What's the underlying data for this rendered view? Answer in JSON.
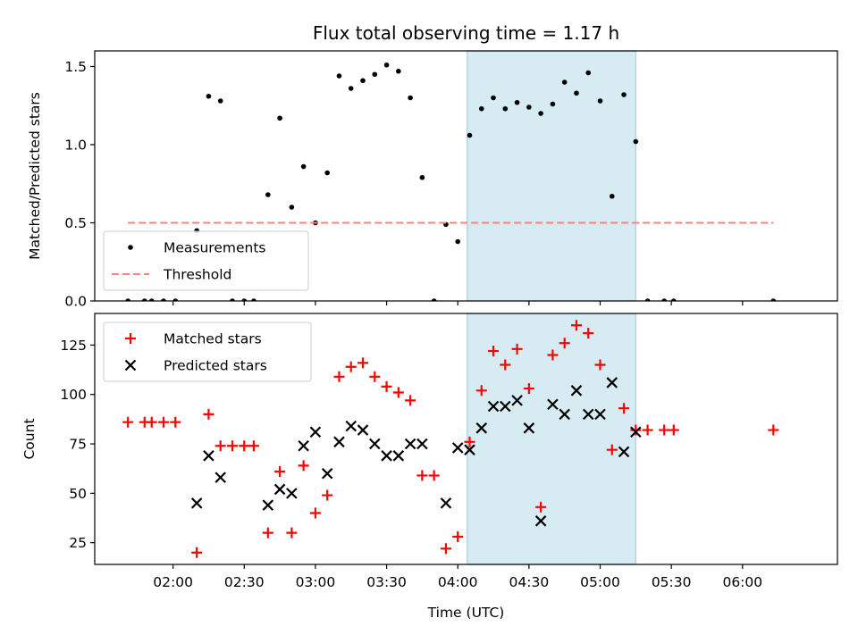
{
  "chart_data": [
    {
      "type": "scatter",
      "title": "Flux total observing time = 1.17 h",
      "xlabel": "",
      "ylabel": "Matched/Predicted stars",
      "xlim": [
        "01:27",
        "06:40"
      ],
      "ylim": [
        0,
        1.6
      ],
      "yticks": [
        "0.0",
        "0.5",
        "1.0",
        "1.5"
      ],
      "legend_position": "lower-left",
      "shaded_region": {
        "x0": "04:04",
        "x1": "05:15",
        "color": "#add8e6"
      },
      "series": [
        {
          "name": "Measurements",
          "color": "#000000",
          "marker": "dot",
          "points": [
            [
              "01:41",
              0.0
            ],
            [
              "01:48",
              0.0
            ],
            [
              "01:51",
              0.0
            ],
            [
              "01:56",
              0.0
            ],
            [
              "02:01",
              0.0
            ],
            [
              "02:10",
              0.45
            ],
            [
              "02:15",
              1.31
            ],
            [
              "02:20",
              1.28
            ],
            [
              "02:25",
              0.0
            ],
            [
              "02:30",
              0.0
            ],
            [
              "02:34",
              0.0
            ],
            [
              "02:40",
              0.68
            ],
            [
              "02:45",
              1.17
            ],
            [
              "02:50",
              0.6
            ],
            [
              "02:55",
              0.86
            ],
            [
              "03:00",
              0.5
            ],
            [
              "03:05",
              0.82
            ],
            [
              "03:10",
              1.44
            ],
            [
              "03:15",
              1.36
            ],
            [
              "03:20",
              1.41
            ],
            [
              "03:25",
              1.45
            ],
            [
              "03:30",
              1.51
            ],
            [
              "03:35",
              1.47
            ],
            [
              "03:40",
              1.3
            ],
            [
              "03:45",
              0.79
            ],
            [
              "03:50",
              0.0
            ],
            [
              "03:55",
              0.49
            ],
            [
              "04:00",
              0.38
            ],
            [
              "04:05",
              1.06
            ],
            [
              "04:10",
              1.23
            ],
            [
              "04:15",
              1.3
            ],
            [
              "04:20",
              1.23
            ],
            [
              "04:25",
              1.27
            ],
            [
              "04:30",
              1.24
            ],
            [
              "04:35",
              1.2
            ],
            [
              "04:40",
              1.26
            ],
            [
              "04:45",
              1.4
            ],
            [
              "04:50",
              1.33
            ],
            [
              "04:55",
              1.46
            ],
            [
              "05:00",
              1.28
            ],
            [
              "05:05",
              0.67
            ],
            [
              "05:10",
              1.32
            ],
            [
              "05:15",
              1.02
            ],
            [
              "05:20",
              0.0
            ],
            [
              "05:27",
              0.0
            ],
            [
              "05:31",
              0.0
            ],
            [
              "06:13",
              0.0
            ]
          ]
        },
        {
          "name": "Threshold",
          "color": "#ff7f7f",
          "style": "dashed",
          "points": [
            [
              "01:41",
              0.5
            ],
            [
              "06:13",
              0.5
            ]
          ]
        }
      ]
    },
    {
      "type": "scatter",
      "xlabel": "Time (UTC)",
      "ylabel": "Count",
      "xlim": [
        "01:27",
        "06:40"
      ],
      "ylim": [
        14,
        141
      ],
      "xticks": [
        "02:00",
        "02:30",
        "03:00",
        "03:30",
        "04:00",
        "04:30",
        "05:00",
        "05:30",
        "06:00"
      ],
      "yticks": [
        "25",
        "50",
        "75",
        "100",
        "125"
      ],
      "legend_position": "top-left",
      "shaded_region": {
        "x0": "04:04",
        "x1": "05:15",
        "color": "#add8e6"
      },
      "series": [
        {
          "name": "Matched stars",
          "color": "#ff0000",
          "marker": "plus",
          "points": [
            [
              "01:41",
              86
            ],
            [
              "01:48",
              86
            ],
            [
              "01:51",
              86
            ],
            [
              "01:56",
              86
            ],
            [
              "02:01",
              86
            ],
            [
              "02:10",
              20
            ],
            [
              "02:15",
              90
            ],
            [
              "02:20",
              74
            ],
            [
              "02:25",
              74
            ],
            [
              "02:30",
              74
            ],
            [
              "02:34",
              74
            ],
            [
              "02:40",
              30
            ],
            [
              "02:45",
              61
            ],
            [
              "02:50",
              30
            ],
            [
              "02:55",
              64
            ],
            [
              "03:00",
              40
            ],
            [
              "03:05",
              49
            ],
            [
              "03:10",
              109
            ],
            [
              "03:15",
              114
            ],
            [
              "03:20",
              116
            ],
            [
              "03:25",
              109
            ],
            [
              "03:30",
              104
            ],
            [
              "03:35",
              101
            ],
            [
              "03:40",
              97
            ],
            [
              "03:45",
              59
            ],
            [
              "03:50",
              59
            ],
            [
              "03:55",
              22
            ],
            [
              "04:00",
              28
            ],
            [
              "04:05",
              76
            ],
            [
              "04:10",
              102
            ],
            [
              "04:15",
              122
            ],
            [
              "04:20",
              115
            ],
            [
              "04:25",
              123
            ],
            [
              "04:30",
              103
            ],
            [
              "04:35",
              43
            ],
            [
              "04:40",
              120
            ],
            [
              "04:45",
              126
            ],
            [
              "04:50",
              135
            ],
            [
              "04:55",
              131
            ],
            [
              "05:00",
              115
            ],
            [
              "05:05",
              72
            ],
            [
              "05:10",
              93
            ],
            [
              "05:15",
              82
            ],
            [
              "05:20",
              82
            ],
            [
              "05:27",
              82
            ],
            [
              "05:31",
              82
            ],
            [
              "06:13",
              82
            ]
          ]
        },
        {
          "name": "Predicted stars",
          "color": "#000000",
          "marker": "x",
          "points": [
            [
              "02:10",
              45
            ],
            [
              "02:15",
              69
            ],
            [
              "02:20",
              58
            ],
            [
              "02:40",
              44
            ],
            [
              "02:45",
              52
            ],
            [
              "02:50",
              50
            ],
            [
              "02:55",
              74
            ],
            [
              "03:00",
              81
            ],
            [
              "03:05",
              60
            ],
            [
              "03:10",
              76
            ],
            [
              "03:15",
              84
            ],
            [
              "03:20",
              82
            ],
            [
              "03:25",
              75
            ],
            [
              "03:30",
              69
            ],
            [
              "03:35",
              69
            ],
            [
              "03:40",
              75
            ],
            [
              "03:45",
              75
            ],
            [
              "03:55",
              45
            ],
            [
              "04:00",
              73
            ],
            [
              "04:05",
              72
            ],
            [
              "04:10",
              83
            ],
            [
              "04:15",
              94
            ],
            [
              "04:20",
              94
            ],
            [
              "04:25",
              97
            ],
            [
              "04:30",
              83
            ],
            [
              "04:35",
              36
            ],
            [
              "04:40",
              95
            ],
            [
              "04:45",
              90
            ],
            [
              "04:50",
              102
            ],
            [
              "04:55",
              90
            ],
            [
              "05:00",
              90
            ],
            [
              "05:05",
              106
            ],
            [
              "05:10",
              71
            ],
            [
              "05:15",
              81
            ]
          ]
        }
      ]
    }
  ]
}
